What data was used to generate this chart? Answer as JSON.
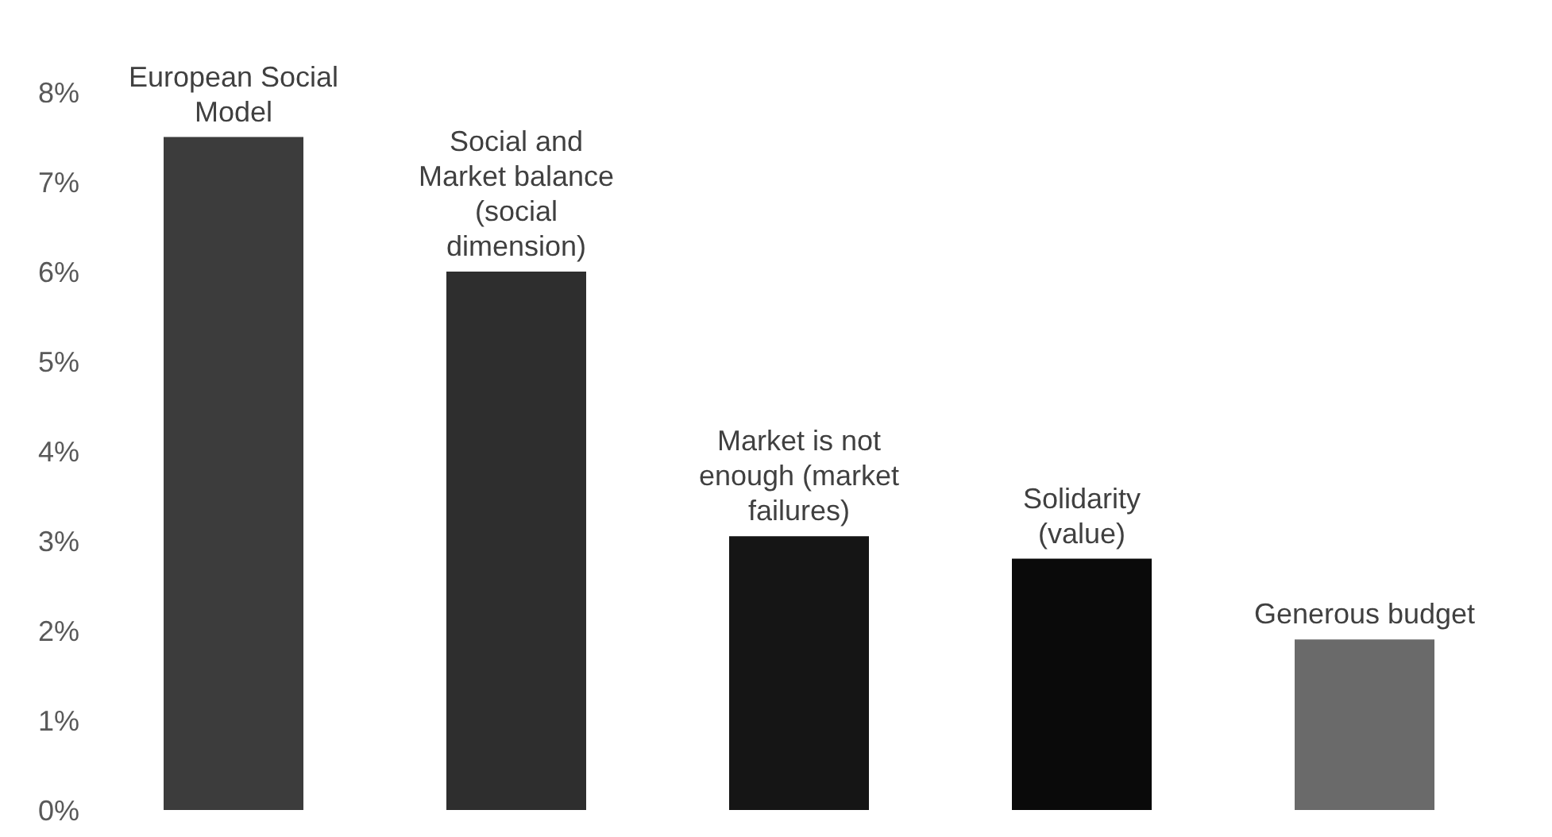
{
  "chart_data": {
    "type": "bar",
    "categories": [
      "European Social Model",
      "Social and Market balance (social dimension)",
      "Market is not enough (market failures)",
      "Solidarity (value)",
      "Generous budget"
    ],
    "values": [
      7.5,
      6.0,
      3.05,
      2.8,
      1.9
    ],
    "colors": [
      "#3c3c3c",
      "#2e2e2e",
      "#151515",
      "#0a0a0a",
      "#6a6a6a"
    ],
    "ylim": [
      0,
      8
    ],
    "yticks": [
      {
        "value": 0,
        "label": "0%"
      },
      {
        "value": 1,
        "label": "1%"
      },
      {
        "value": 2,
        "label": "2%"
      },
      {
        "value": 3,
        "label": "3%"
      },
      {
        "value": 4,
        "label": "4%"
      },
      {
        "value": 5,
        "label": "5%"
      },
      {
        "value": 6,
        "label": "6%"
      },
      {
        "value": 7,
        "label": "7%"
      },
      {
        "value": 8,
        "label": "8%"
      }
    ],
    "grid": false,
    "legend": false
  }
}
